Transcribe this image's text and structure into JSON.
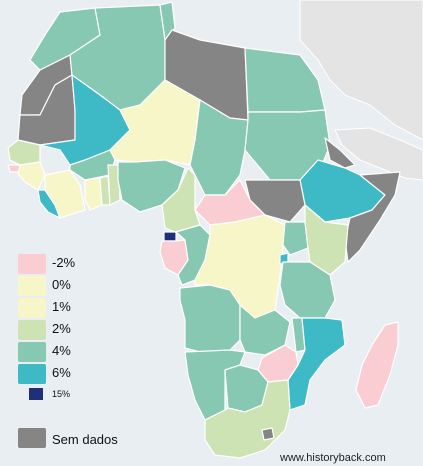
{
  "legend": {
    "items": [
      {
        "label": "-2%",
        "color": "#f9cdd2"
      },
      {
        "label": "0%",
        "color": "#f7f6c8"
      },
      {
        "label": "1%",
        "color": "#f7f6c8"
      },
      {
        "label": "2%",
        "color": "#cde3b4"
      },
      {
        "label": "4%",
        "color": "#86c8b2"
      },
      {
        "label": "6%",
        "color": "#3dbac6"
      }
    ],
    "special": {
      "label": "15%",
      "color": "#1f2f7a"
    },
    "no_data": {
      "label": "Sem dados",
      "color": "#858585"
    }
  },
  "credit": "www.historyback.com",
  "colors": {
    "ocean": "#e9eef2",
    "other_land": "#e4e4e4",
    "border": "#ffffff"
  }
}
